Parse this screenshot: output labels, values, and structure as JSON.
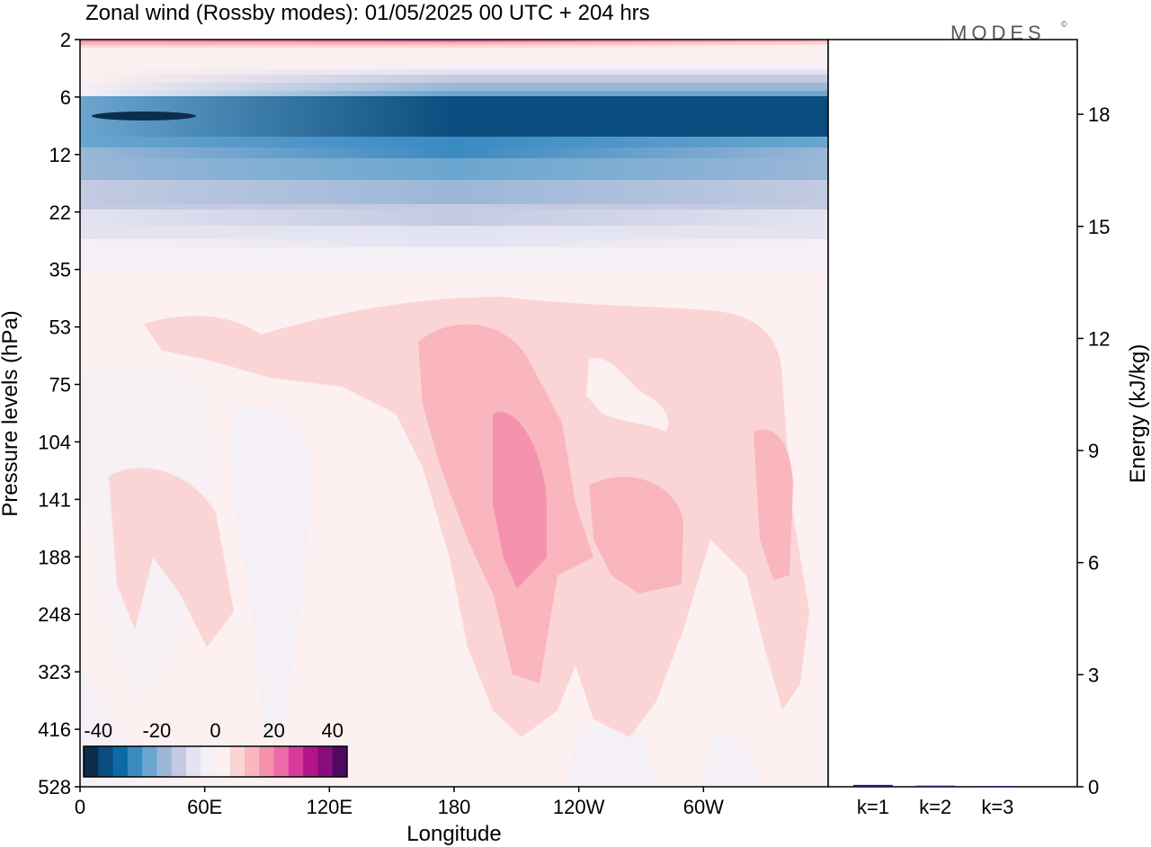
{
  "title": "Zonal wind (Rossby modes):  01/05/2025  00 UTC  + 204 hrs",
  "brand": {
    "name": "MODES",
    "mark": "©"
  },
  "chart_data": [
    {
      "type": "heatmap",
      "variable": "Zonal wind",
      "xlabel": "Longitude",
      "ylabel": "Pressure levels (hPa)",
      "x_ticks": [
        "0",
        "60E",
        "120E",
        "180",
        "120W",
        "60W"
      ],
      "x_tick_deg": [
        0,
        60,
        120,
        180,
        240,
        300
      ],
      "xlim_deg": [
        0,
        360
      ],
      "y_ticks": [
        "2",
        "6",
        "12",
        "22",
        "35",
        "53",
        "75",
        "104",
        "141",
        "188",
        "248",
        "323",
        "416",
        "528"
      ],
      "y_scale": "reversed, one step per listed level",
      "colorbar": {
        "ticks": [
          "-40",
          "-20",
          "0",
          "20",
          "40"
        ],
        "range": [
          -45,
          45
        ],
        "step": 5,
        "colors": [
          "#0c2e4c",
          "#0a4d7e",
          "#0b6aa6",
          "#3a8ac2",
          "#6aa6cf",
          "#9ab7d7",
          "#c3cae2",
          "#e4e3f0",
          "#f5f0f6",
          "#fdf0f0",
          "#fbd5d6",
          "#f9b6be",
          "#f592ae",
          "#ee6aa8",
          "#d83a9c",
          "#b4148a",
          "#880c7c",
          "#4e0a60"
        ]
      },
      "layers": [
        {
          "u": 2,
          "level_index": 0.0,
          "lon": [
            0,
            360
          ]
        },
        {
          "u": -25,
          "level_index": 1.3,
          "lon": [
            0,
            360
          ]
        },
        {
          "u": -10,
          "level_index": 3.0,
          "lon": [
            0,
            360
          ]
        },
        {
          "u": 2,
          "level_index": 4.2,
          "lon": [
            0,
            360
          ]
        },
        {
          "u": 6,
          "level_index": 7.0,
          "lon": [
            170,
            330
          ]
        },
        {
          "u": 12,
          "level_index": 8.5,
          "lon": [
            185,
            225
          ]
        },
        {
          "u": -4,
          "level_index": 8.0,
          "lon": [
            70,
            115
          ]
        }
      ],
      "jets": [
        {
          "description": "westward stratospheric jet",
          "u": -40,
          "level_index": 1.3
        },
        {
          "description": "eastward upper-stratosphere flow",
          "u": 25,
          "level_index": 0.0,
          "lon_center": 235
        },
        {
          "description": "eastward tropospheric maximum",
          "u": 20,
          "level_index": 8.2,
          "lon_center": 200
        }
      ]
    },
    {
      "type": "bar",
      "ylabel": "Energy (kJ/kg)",
      "categories": [
        "k=1",
        "k=2",
        "k=3"
      ],
      "values": [
        0.05,
        0.03,
        0.02
      ],
      "ylim": [
        0,
        20
      ],
      "y_ticks": [
        "0",
        "3",
        "6",
        "9",
        "12",
        "15",
        "18"
      ],
      "bar_color": "#1f1f6b"
    }
  ]
}
